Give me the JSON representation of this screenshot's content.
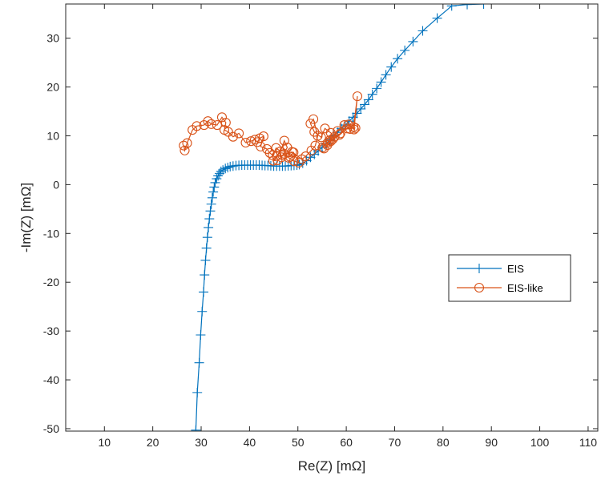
{
  "chart_data": {
    "type": "line",
    "title": "",
    "xlabel": "Re(Z) [mΩ]",
    "ylabel": "-Im(Z) [mΩ]",
    "xlim": [
      2,
      112
    ],
    "ylim": [
      -50.5,
      37
    ],
    "xticks": [
      10,
      20,
      30,
      40,
      50,
      60,
      70,
      80,
      90,
      100,
      110
    ],
    "yticks": [
      -50,
      -40,
      -30,
      -20,
      -10,
      0,
      10,
      20,
      30
    ],
    "grid": false,
    "legend_position": "right",
    "series": [
      {
        "name": "EIS",
        "color": "#0072bd",
        "marker": "plus",
        "x": [
          28.9,
          29.2,
          29.6,
          29.9,
          30.2,
          30.5,
          30.7,
          30.9,
          31.1,
          31.3,
          31.5,
          31.7,
          31.9,
          32.1,
          32.3,
          32.5,
          32.7,
          32.9,
          33.2,
          33.5,
          33.8,
          34.1,
          34.5,
          35.0,
          35.5,
          36.0,
          36.6,
          37.2,
          37.8,
          38.4,
          39.0,
          39.6,
          40.2,
          40.8,
          41.4,
          42.0,
          42.6,
          43.2,
          43.8,
          44.4,
          45.0,
          45.6,
          46.2,
          46.8,
          47.4,
          48.0,
          48.6,
          49.2,
          49.8,
          50.3,
          51.0,
          51.8,
          52.6,
          53.4,
          54.2,
          55.0,
          55.8,
          56.6,
          57.4,
          58.2,
          59.0,
          59.8,
          60.6,
          61.4,
          62.2,
          63.0,
          63.8,
          64.6,
          65.4,
          66.3,
          67.2,
          68.2,
          69.3,
          70.6,
          72.1,
          73.8,
          75.8,
          78.8,
          81.8,
          85.0,
          88.4
        ],
        "y": [
          -50.3,
          -42.6,
          -36.5,
          -30.8,
          -26.0,
          -22.0,
          -18.5,
          -15.5,
          -13.0,
          -10.8,
          -8.8,
          -7.0,
          -5.4,
          -4.0,
          -2.7,
          -1.5,
          -0.5,
          0.4,
          1.2,
          1.8,
          2.3,
          2.7,
          3.0,
          3.3,
          3.5,
          3.7,
          3.8,
          3.9,
          3.95,
          4.0,
          4.0,
          4.0,
          4.0,
          4.0,
          4.0,
          4.0,
          3.95,
          3.9,
          3.9,
          3.85,
          3.8,
          3.8,
          3.8,
          3.8,
          3.8,
          3.85,
          3.9,
          3.95,
          4.0,
          4.1,
          4.4,
          4.9,
          5.6,
          6.2,
          6.9,
          7.6,
          8.4,
          9.2,
          10.0,
          10.7,
          11.5,
          12.2,
          13.0,
          13.8,
          14.6,
          15.5,
          16.4,
          17.4,
          18.5,
          19.7,
          21.0,
          22.5,
          24.1,
          25.8,
          27.5,
          29.3,
          31.5,
          34.1,
          36.6,
          36.9,
          37.0
        ]
      },
      {
        "name": "EIS-like",
        "color": "#d95319",
        "marker": "circle",
        "x": [
          26.4,
          26.6,
          27.1,
          28.2,
          29.1,
          30.6,
          31.4,
          32.1,
          33.3,
          34.3,
          35.1,
          34.8,
          35.6,
          36.6,
          37.8,
          39.2,
          40.3,
          41.1,
          41.6,
          42.1,
          42.9,
          42.3,
          43.6,
          44.2,
          44.8,
          45.5,
          46.4,
          47.2,
          47.8,
          46.6,
          45.8,
          44.9,
          45.6,
          46.8,
          48.4,
          49.1,
          50.2,
          49.2,
          48.1,
          47.2,
          48.8,
          50.8,
          51.6,
          52.8,
          53.6,
          54.1,
          53.2,
          52.6,
          53.4,
          54.8,
          55.6,
          56.8,
          57.6,
          56.2,
          55.1,
          56.6,
          58.2,
          59.6,
          60.8,
          61.5,
          62.3,
          61.6,
          60.4,
          58.8,
          57.2,
          56.1,
          55.4,
          56.8,
          58.6,
          60.2,
          61.9
        ],
        "y": [
          8.0,
          7.0,
          8.5,
          11.2,
          12.0,
          12.2,
          13.0,
          12.4,
          12.2,
          13.8,
          12.7,
          11.2,
          10.8,
          9.8,
          10.5,
          8.6,
          8.9,
          9.2,
          8.7,
          9.5,
          9.9,
          7.8,
          7.3,
          6.5,
          6.0,
          7.5,
          6.8,
          9.0,
          7.6,
          5.6,
          5.0,
          4.9,
          5.9,
          6.0,
          5.7,
          6.6,
          4.5,
          4.8,
          5.5,
          6.3,
          6.7,
          5.2,
          5.8,
          7.0,
          8.0,
          10.0,
          13.4,
          12.5,
          10.8,
          9.7,
          11.5,
          10.6,
          9.8,
          8.6,
          7.6,
          9.1,
          11.0,
          12.2,
          11.4,
          11.8,
          18.1,
          11.3,
          12.3,
          10.5,
          9.3,
          8.1,
          7.4,
          8.9,
          10.2,
          11.5,
          11.6
        ]
      }
    ]
  }
}
